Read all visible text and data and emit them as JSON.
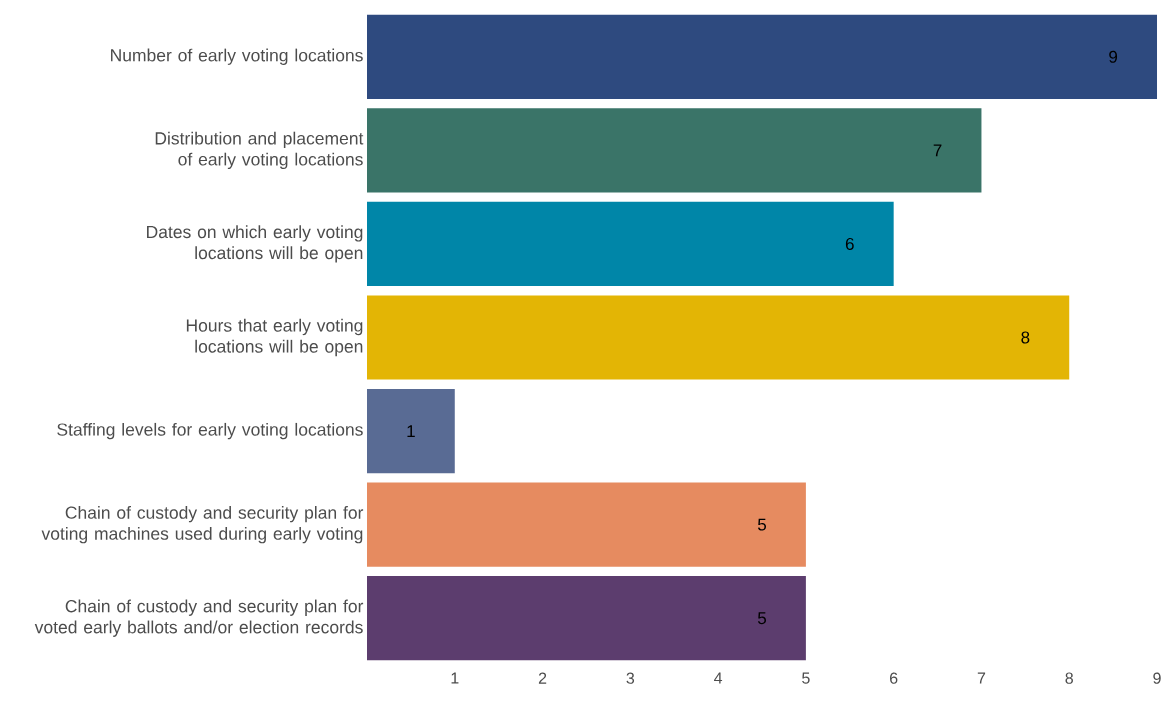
{
  "chart_data": {
    "type": "bar",
    "orientation": "horizontal",
    "categories": [
      "Number of early voting locations",
      "Distribution and placement of early voting locations",
      "Dates on which early voting locations will be open",
      "Hours that early voting locations will be open",
      "Staffing levels for early voting locations",
      "Chain of custody and security plan for voting machines used during early voting",
      "Chain of custody and security plan for voted early ballots and/or election records"
    ],
    "values": [
      9,
      7,
      6,
      8,
      1,
      5,
      5
    ],
    "colors": [
      "#2e4a7f",
      "#3a7468",
      "#0086a8",
      "#e3b505",
      "#596b94",
      "#e68b60",
      "#5c3d6e"
    ],
    "xlim": [
      0,
      9
    ],
    "xticks": [
      1,
      2,
      3,
      4,
      5,
      6,
      7,
      8,
      9
    ],
    "data_labels": true
  }
}
